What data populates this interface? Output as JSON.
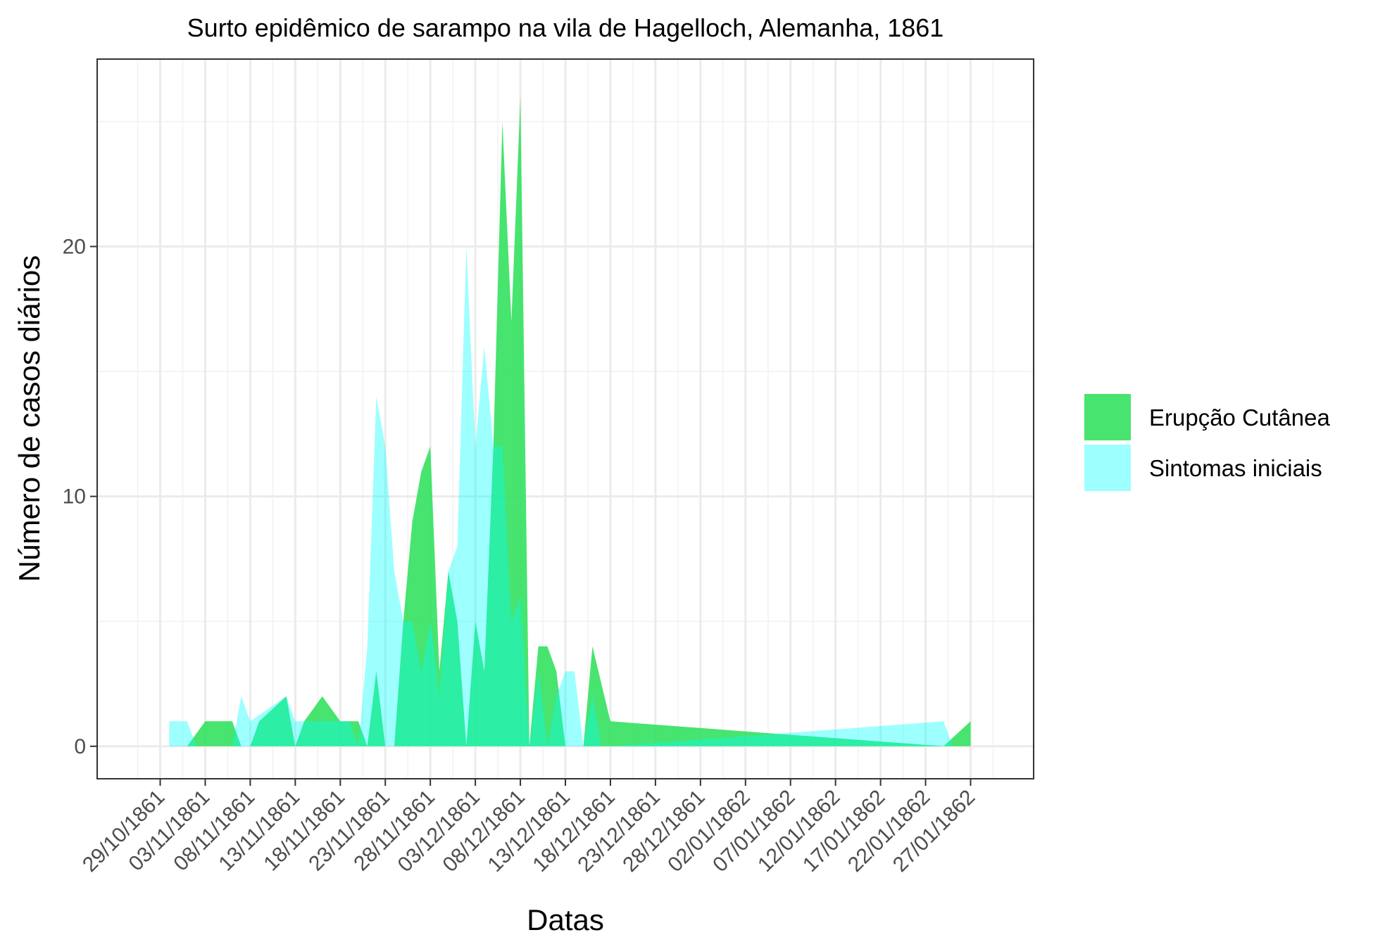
{
  "chart_data": {
    "type": "area",
    "title": "Surto epidêmico de sarampo na vila de Hagelloch, Alemanha, 1861",
    "xlabel": "Datas",
    "ylabel": "Número de casos diários",
    "x_type": "date",
    "xlim": [
      "1861-10-22",
      "1862-02-03"
    ],
    "ylim": [
      -1.3,
      27.5
    ],
    "x_ticks": [
      "1861-10-29",
      "1861-11-03",
      "1861-11-08",
      "1861-11-13",
      "1861-11-18",
      "1861-11-23",
      "1861-11-28",
      "1861-12-03",
      "1861-12-08",
      "1861-12-13",
      "1861-12-18",
      "1861-12-23",
      "1861-12-28",
      "1862-01-02",
      "1862-01-07",
      "1862-01-12",
      "1862-01-17",
      "1862-01-22",
      "1862-01-27"
    ],
    "x_tick_labels": [
      "29/10/1861",
      "03/11/1861",
      "08/11/1861",
      "13/11/1861",
      "18/11/1861",
      "23/11/1861",
      "28/11/1861",
      "03/12/1861",
      "08/12/1861",
      "13/12/1861",
      "18/12/1861",
      "23/12/1861",
      "28/12/1861",
      "02/01/1862",
      "07/01/1862",
      "12/01/1862",
      "17/01/1862",
      "22/01/1862",
      "27/01/1862"
    ],
    "y_ticks": [
      0,
      10,
      20
    ],
    "y_tick_labels": [
      "0",
      "10",
      "20"
    ],
    "grid": true,
    "legend_position": "right",
    "series": [
      {
        "name": "Erupção Cutânea",
        "color": "#2ee05b",
        "opacity": 0.88,
        "points": [
          [
            "1861-11-01",
            0
          ],
          [
            "1861-11-03",
            1
          ],
          [
            "1861-11-06",
            1
          ],
          [
            "1861-11-07",
            0
          ],
          [
            "1861-11-08",
            0
          ],
          [
            "1861-11-09",
            1
          ],
          [
            "1861-11-12",
            2
          ],
          [
            "1861-11-13",
            0
          ],
          [
            "1861-11-14",
            1
          ],
          [
            "1861-11-16",
            2
          ],
          [
            "1861-11-18",
            1
          ],
          [
            "1861-11-20",
            1
          ],
          [
            "1861-11-21",
            0
          ],
          [
            "1861-11-22",
            3
          ],
          [
            "1861-11-23",
            0
          ],
          [
            "1861-11-24",
            0
          ],
          [
            "1861-11-25",
            5
          ],
          [
            "1861-11-26",
            9
          ],
          [
            "1861-11-27",
            11
          ],
          [
            "1861-11-28",
            12
          ],
          [
            "1861-11-29",
            3
          ],
          [
            "1861-11-30",
            7
          ],
          [
            "1861-12-01",
            5
          ],
          [
            "1861-12-02",
            0
          ],
          [
            "1861-12-03",
            5
          ],
          [
            "1861-12-04",
            3
          ],
          [
            "1861-12-05",
            12
          ],
          [
            "1861-12-06",
            25
          ],
          [
            "1861-12-07",
            17
          ],
          [
            "1861-12-08",
            26
          ],
          [
            "1861-12-09",
            0
          ],
          [
            "1861-12-10",
            4
          ],
          [
            "1861-12-11",
            4
          ],
          [
            "1861-12-12",
            3
          ],
          [
            "1861-12-13",
            0
          ],
          [
            "1861-12-14",
            0
          ],
          [
            "1861-12-15",
            0
          ],
          [
            "1861-12-16",
            4
          ],
          [
            "1861-12-18",
            1
          ],
          [
            "1862-01-24",
            0
          ],
          [
            "1862-01-27",
            1
          ],
          [
            "1862-01-27",
            0
          ]
        ]
      },
      {
        "name": "Sintomas iniciais",
        "color": "#00ffff",
        "opacity": 0.38,
        "points": [
          [
            "1861-10-30",
            0
          ],
          [
            "1861-10-30",
            1
          ],
          [
            "1861-11-01",
            1
          ],
          [
            "1861-11-02",
            0
          ],
          [
            "1861-11-06",
            0
          ],
          [
            "1861-11-07",
            2
          ],
          [
            "1861-11-08",
            1
          ],
          [
            "1861-11-12",
            2
          ],
          [
            "1861-11-13",
            1
          ],
          [
            "1861-11-14",
            1
          ],
          [
            "1861-11-15",
            1
          ],
          [
            "1861-11-19",
            1
          ],
          [
            "1861-11-20",
            0
          ],
          [
            "1861-11-21",
            4
          ],
          [
            "1861-11-22",
            14
          ],
          [
            "1861-11-23",
            12
          ],
          [
            "1861-11-24",
            7
          ],
          [
            "1861-11-25",
            5
          ],
          [
            "1861-11-26",
            5
          ],
          [
            "1861-11-27",
            3
          ],
          [
            "1861-11-28",
            5
          ],
          [
            "1861-11-29",
            2
          ],
          [
            "1861-11-30",
            7
          ],
          [
            "1861-12-01",
            8
          ],
          [
            "1861-12-02",
            20
          ],
          [
            "1861-12-03",
            12
          ],
          [
            "1861-12-04",
            16
          ],
          [
            "1861-12-05",
            12
          ],
          [
            "1861-12-06",
            12
          ],
          [
            "1861-12-07",
            5
          ],
          [
            "1861-12-08",
            6
          ],
          [
            "1861-12-09",
            0
          ],
          [
            "1861-12-10",
            3
          ],
          [
            "1861-12-11",
            0
          ],
          [
            "1861-12-12",
            2
          ],
          [
            "1861-12-13",
            3
          ],
          [
            "1861-12-14",
            3
          ],
          [
            "1861-12-15",
            0
          ],
          [
            "1861-12-16",
            2
          ],
          [
            "1861-12-17",
            0
          ],
          [
            "1861-12-18",
            0
          ],
          [
            "1862-01-24",
            1
          ],
          [
            "1862-01-25",
            0
          ]
        ]
      }
    ]
  }
}
